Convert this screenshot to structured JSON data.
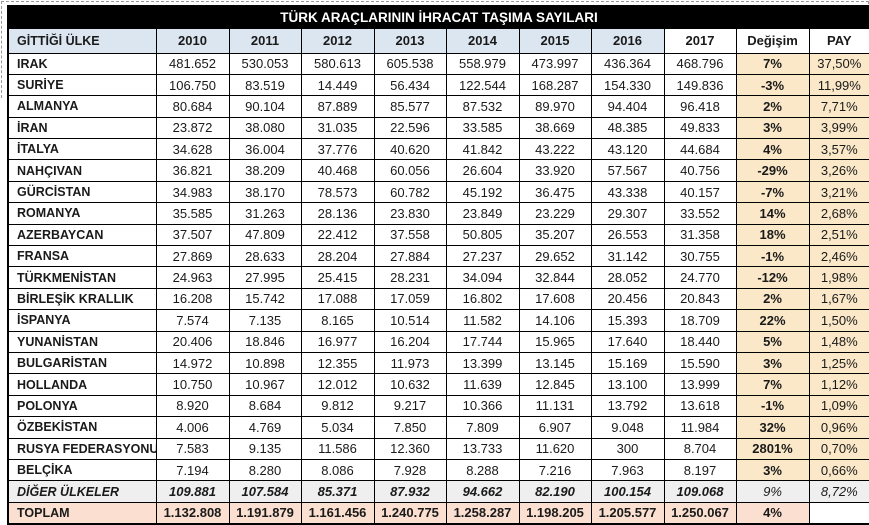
{
  "title": "TÜRK ARAÇLARININ İHRACAT TAŞIMA SAYILARI",
  "colors": {
    "title_bg": "#000000",
    "title_text": "#ffffff",
    "header_bg": "#dce6f1",
    "percent_col_bg": "#fae8c8",
    "other_row_bg": "#efefef",
    "total_row_bg": "#fbe0d1"
  },
  "table": {
    "columns": [
      "GİTTİĞİ ÜLKE",
      "2010",
      "2011",
      "2012",
      "2013",
      "2014",
      "2015",
      "2016",
      "2017",
      "Değişim",
      "PAY"
    ],
    "rows": [
      {
        "country": "IRAK",
        "values": [
          "481.652",
          "530.053",
          "580.613",
          "605.538",
          "558.979",
          "473.997",
          "436.364",
          "468.796"
        ],
        "change": "7%",
        "share": "37,50%",
        "type": "normal"
      },
      {
        "country": "SURİYE",
        "values": [
          "106.750",
          "83.519",
          "14.449",
          "56.434",
          "122.544",
          "168.287",
          "154.330",
          "149.836"
        ],
        "change": "-3%",
        "share": "11,99%",
        "type": "normal"
      },
      {
        "country": "ALMANYA",
        "values": [
          "80.684",
          "90.104",
          "87.889",
          "85.577",
          "87.532",
          "89.970",
          "94.404",
          "96.418"
        ],
        "change": "2%",
        "share": "7,71%",
        "type": "normal"
      },
      {
        "country": "İRAN",
        "values": [
          "23.872",
          "38.080",
          "31.035",
          "22.596",
          "33.585",
          "38.669",
          "48.385",
          "49.833"
        ],
        "change": "3%",
        "share": "3,99%",
        "type": "normal"
      },
      {
        "country": "İTALYA",
        "values": [
          "34.628",
          "36.004",
          "37.776",
          "40.620",
          "41.842",
          "43.222",
          "43.120",
          "44.684"
        ],
        "change": "4%",
        "share": "3,57%",
        "type": "normal"
      },
      {
        "country": "NAHÇIVAN",
        "values": [
          "36.821",
          "38.209",
          "40.468",
          "60.056",
          "26.604",
          "33.920",
          "57.567",
          "40.756"
        ],
        "change": "-29%",
        "share": "3,26%",
        "type": "normal"
      },
      {
        "country": "GÜRCİSTAN",
        "values": [
          "34.983",
          "38.170",
          "78.573",
          "60.782",
          "45.192",
          "36.475",
          "43.338",
          "40.157"
        ],
        "change": "-7%",
        "share": "3,21%",
        "type": "normal"
      },
      {
        "country": "ROMANYA",
        "values": [
          "35.585",
          "31.263",
          "28.136",
          "23.830",
          "23.849",
          "23.229",
          "29.307",
          "33.552"
        ],
        "change": "14%",
        "share": "2,68%",
        "type": "normal"
      },
      {
        "country": "AZERBAYCAN",
        "values": [
          "37.507",
          "47.809",
          "22.412",
          "37.558",
          "50.805",
          "35.207",
          "26.553",
          "31.358"
        ],
        "change": "18%",
        "share": "2,51%",
        "type": "normal"
      },
      {
        "country": "FRANSA",
        "values": [
          "27.869",
          "28.633",
          "28.204",
          "27.884",
          "27.237",
          "29.652",
          "31.142",
          "30.755"
        ],
        "change": "-1%",
        "share": "2,46%",
        "type": "normal"
      },
      {
        "country": "TÜRKMENİSTAN",
        "values": [
          "24.963",
          "27.995",
          "25.415",
          "28.231",
          "34.094",
          "32.844",
          "28.052",
          "24.770"
        ],
        "change": "-12%",
        "share": "1,98%",
        "type": "normal"
      },
      {
        "country": "BİRLEŞİK KRALLIK",
        "values": [
          "16.208",
          "15.742",
          "17.088",
          "17.059",
          "16.802",
          "17.608",
          "20.456",
          "20.843"
        ],
        "change": "2%",
        "share": "1,67%",
        "type": "normal"
      },
      {
        "country": "İSPANYA",
        "values": [
          "7.574",
          "7.135",
          "8.165",
          "10.514",
          "11.582",
          "14.106",
          "15.393",
          "18.709"
        ],
        "change": "22%",
        "share": "1,50%",
        "type": "normal"
      },
      {
        "country": "YUNANİSTAN",
        "values": [
          "20.406",
          "18.846",
          "16.977",
          "16.204",
          "17.744",
          "15.965",
          "17.640",
          "18.440"
        ],
        "change": "5%",
        "share": "1,48%",
        "type": "normal"
      },
      {
        "country": "BULGARİSTAN",
        "values": [
          "14.972",
          "10.898",
          "12.355",
          "11.973",
          "13.399",
          "13.145",
          "15.169",
          "15.590"
        ],
        "change": "3%",
        "share": "1,25%",
        "type": "normal"
      },
      {
        "country": "HOLLANDA",
        "values": [
          "10.750",
          "10.967",
          "12.012",
          "10.632",
          "11.639",
          "12.845",
          "13.100",
          "13.999"
        ],
        "change": "7%",
        "share": "1,12%",
        "type": "normal"
      },
      {
        "country": "POLONYA",
        "values": [
          "8.920",
          "8.684",
          "9.812",
          "9.217",
          "10.366",
          "11.131",
          "13.792",
          "13.618"
        ],
        "change": "-1%",
        "share": "1,09%",
        "type": "normal"
      },
      {
        "country": "ÖZBEKİSTAN",
        "values": [
          "4.006",
          "4.769",
          "5.034",
          "7.850",
          "7.809",
          "6.907",
          "9.048",
          "11.984"
        ],
        "change": "32%",
        "share": "0,96%",
        "type": "normal"
      },
      {
        "country": "RUSYA FEDERASYONU",
        "values": [
          "7.583",
          "9.135",
          "11.586",
          "12.360",
          "13.733",
          "11.620",
          "300",
          "8.704"
        ],
        "change": "2801%",
        "share": "0,70%",
        "type": "normal"
      },
      {
        "country": "BELÇİKA",
        "values": [
          "7.194",
          "8.280",
          "8.086",
          "7.928",
          "8.288",
          "7.216",
          "7.963",
          "8.197"
        ],
        "change": "3%",
        "share": "0,66%",
        "type": "normal"
      },
      {
        "country": "DİĞER ÜLKELER",
        "values": [
          "109.881",
          "107.584",
          "85.371",
          "87.932",
          "94.662",
          "82.190",
          "100.154",
          "109.068"
        ],
        "change": "9%",
        "share": "8,72%",
        "type": "other"
      },
      {
        "country": "TOPLAM",
        "values": [
          "1.132.808",
          "1.191.879",
          "1.161.456",
          "1.240.775",
          "1.258.287",
          "1.198.205",
          "1.205.577",
          "1.250.067"
        ],
        "change": "4%",
        "share": "",
        "type": "total"
      }
    ]
  }
}
